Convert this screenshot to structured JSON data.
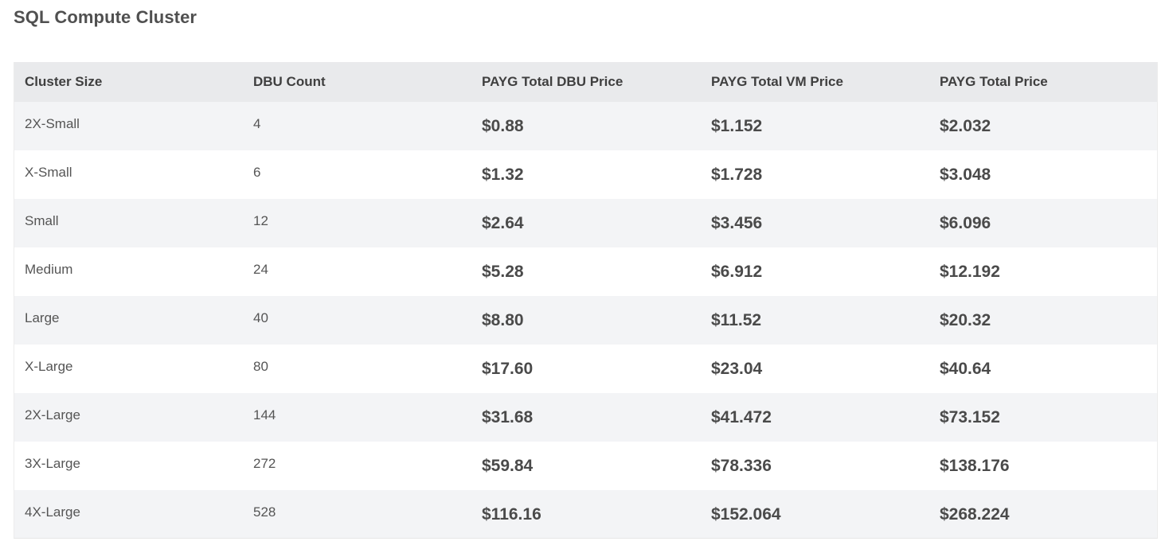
{
  "page": {
    "title": "SQL Compute Cluster"
  },
  "table": {
    "headers": [
      "Cluster Size",
      "DBU Count",
      "PAYG Total DBU Price",
      "PAYG Total VM Price",
      "PAYG Total Price"
    ],
    "rows": [
      {
        "size": "2X-Small",
        "dbu": "4",
        "dbu_price": "$0.88",
        "vm_price": "$1.152",
        "total_price": "$2.032"
      },
      {
        "size": "X-Small",
        "dbu": "6",
        "dbu_price": "$1.32",
        "vm_price": "$1.728",
        "total_price": "$3.048"
      },
      {
        "size": "Small",
        "dbu": "12",
        "dbu_price": "$2.64",
        "vm_price": "$3.456",
        "total_price": "$6.096"
      },
      {
        "size": "Medium",
        "dbu": "24",
        "dbu_price": "$5.28",
        "vm_price": "$6.912",
        "total_price": "$12.192"
      },
      {
        "size": "Large",
        "dbu": "40",
        "dbu_price": "$8.80",
        "vm_price": "$11.52",
        "total_price": "$20.32"
      },
      {
        "size": "X-Large",
        "dbu": "80",
        "dbu_price": "$17.60",
        "vm_price": "$23.04",
        "total_price": "$40.64"
      },
      {
        "size": "2X-Large",
        "dbu": "144",
        "dbu_price": "$31.68",
        "vm_price": "$41.472",
        "total_price": "$73.152"
      },
      {
        "size": "3X-Large",
        "dbu": "272",
        "dbu_price": "$59.84",
        "vm_price": "$78.336",
        "total_price": "$138.176"
      },
      {
        "size": "4X-Large",
        "dbu": "528",
        "dbu_price": "$116.16",
        "vm_price": "$152.064",
        "total_price": "$268.224"
      }
    ]
  },
  "colors": {
    "header_bg": "#e9eaec",
    "stripe_bg": "#f3f4f6",
    "row_bg": "#ffffff",
    "text": "#505050"
  }
}
